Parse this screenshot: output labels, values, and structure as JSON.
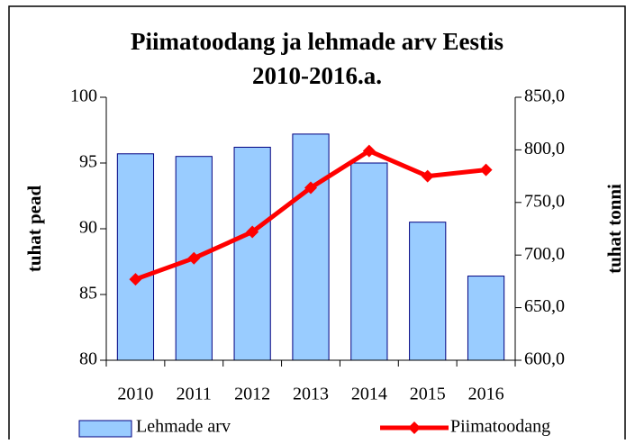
{
  "chart_data": {
    "type": "bar-line",
    "title": [
      "Piimatoodang ja lehmade arv Eestis",
      "2010-2016.a."
    ],
    "y_label": "tuhat pead",
    "y2_label": "tuhat tonni",
    "categories": [
      "2010",
      "2011",
      "2012",
      "2013",
      "2014",
      "2015",
      "2016"
    ],
    "series": [
      {
        "name": "Lehmade arv",
        "type": "bar",
        "color": "#99ccff",
        "values": [
          95.7,
          95.5,
          96.2,
          97.2,
          95.0,
          90.5,
          86.4
        ]
      },
      {
        "name": "Piimatoodang",
        "type": "line",
        "axis": "y2",
        "color": "#ff0000",
        "values": [
          677,
          697,
          722,
          764,
          799,
          775,
          781
        ]
      }
    ],
    "ylim": [
      80,
      100
    ],
    "yticks": [
      80,
      85,
      90,
      95,
      100
    ],
    "y2lim": [
      600,
      850
    ],
    "y2ticks": [
      {
        "value": 600,
        "label": "600,0"
      },
      {
        "value": 650,
        "label": "650,0"
      },
      {
        "value": 700,
        "label": "700,0"
      },
      {
        "value": 750,
        "label": "750,0"
      },
      {
        "value": 800,
        "label": "800,0"
      },
      {
        "value": 850,
        "label": "850,0"
      }
    ]
  }
}
